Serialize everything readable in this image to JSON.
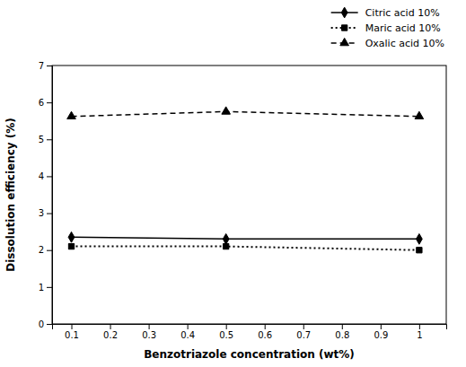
{
  "chart_data": {
    "type": "line",
    "xlabel": "Benzotriazole concentration (wt%)",
    "ylabel": "Dissolution efficiency (%)",
    "x": [
      0.1,
      0.5,
      1.0
    ],
    "series": [
      {
        "name": "Citric acid 10%",
        "color": "#000000",
        "marker": "diamond",
        "line_style": "solid",
        "values": [
          2.35,
          2.3,
          2.3
        ]
      },
      {
        "name": "Maric acid 10%",
        "color": "#000000",
        "marker": "square",
        "line_style": "dotted",
        "values": [
          2.1,
          2.1,
          2.0
        ]
      },
      {
        "name": "Oxalic acid 10%",
        "color": "#000000",
        "marker": "triangle",
        "line_style": "dashed",
        "values": [
          5.62,
          5.75,
          5.62
        ]
      }
    ],
    "xlim": [
      0.05,
      1.07
    ],
    "ylim": [
      0,
      7
    ],
    "xticks": [
      0.1,
      0.2,
      0.3,
      0.4,
      0.5,
      0.6,
      0.7,
      0.8,
      0.9,
      1
    ],
    "yticks": [
      0,
      1,
      2,
      3,
      4,
      5,
      6,
      7
    ],
    "grid": false,
    "legend": "upper right"
  }
}
